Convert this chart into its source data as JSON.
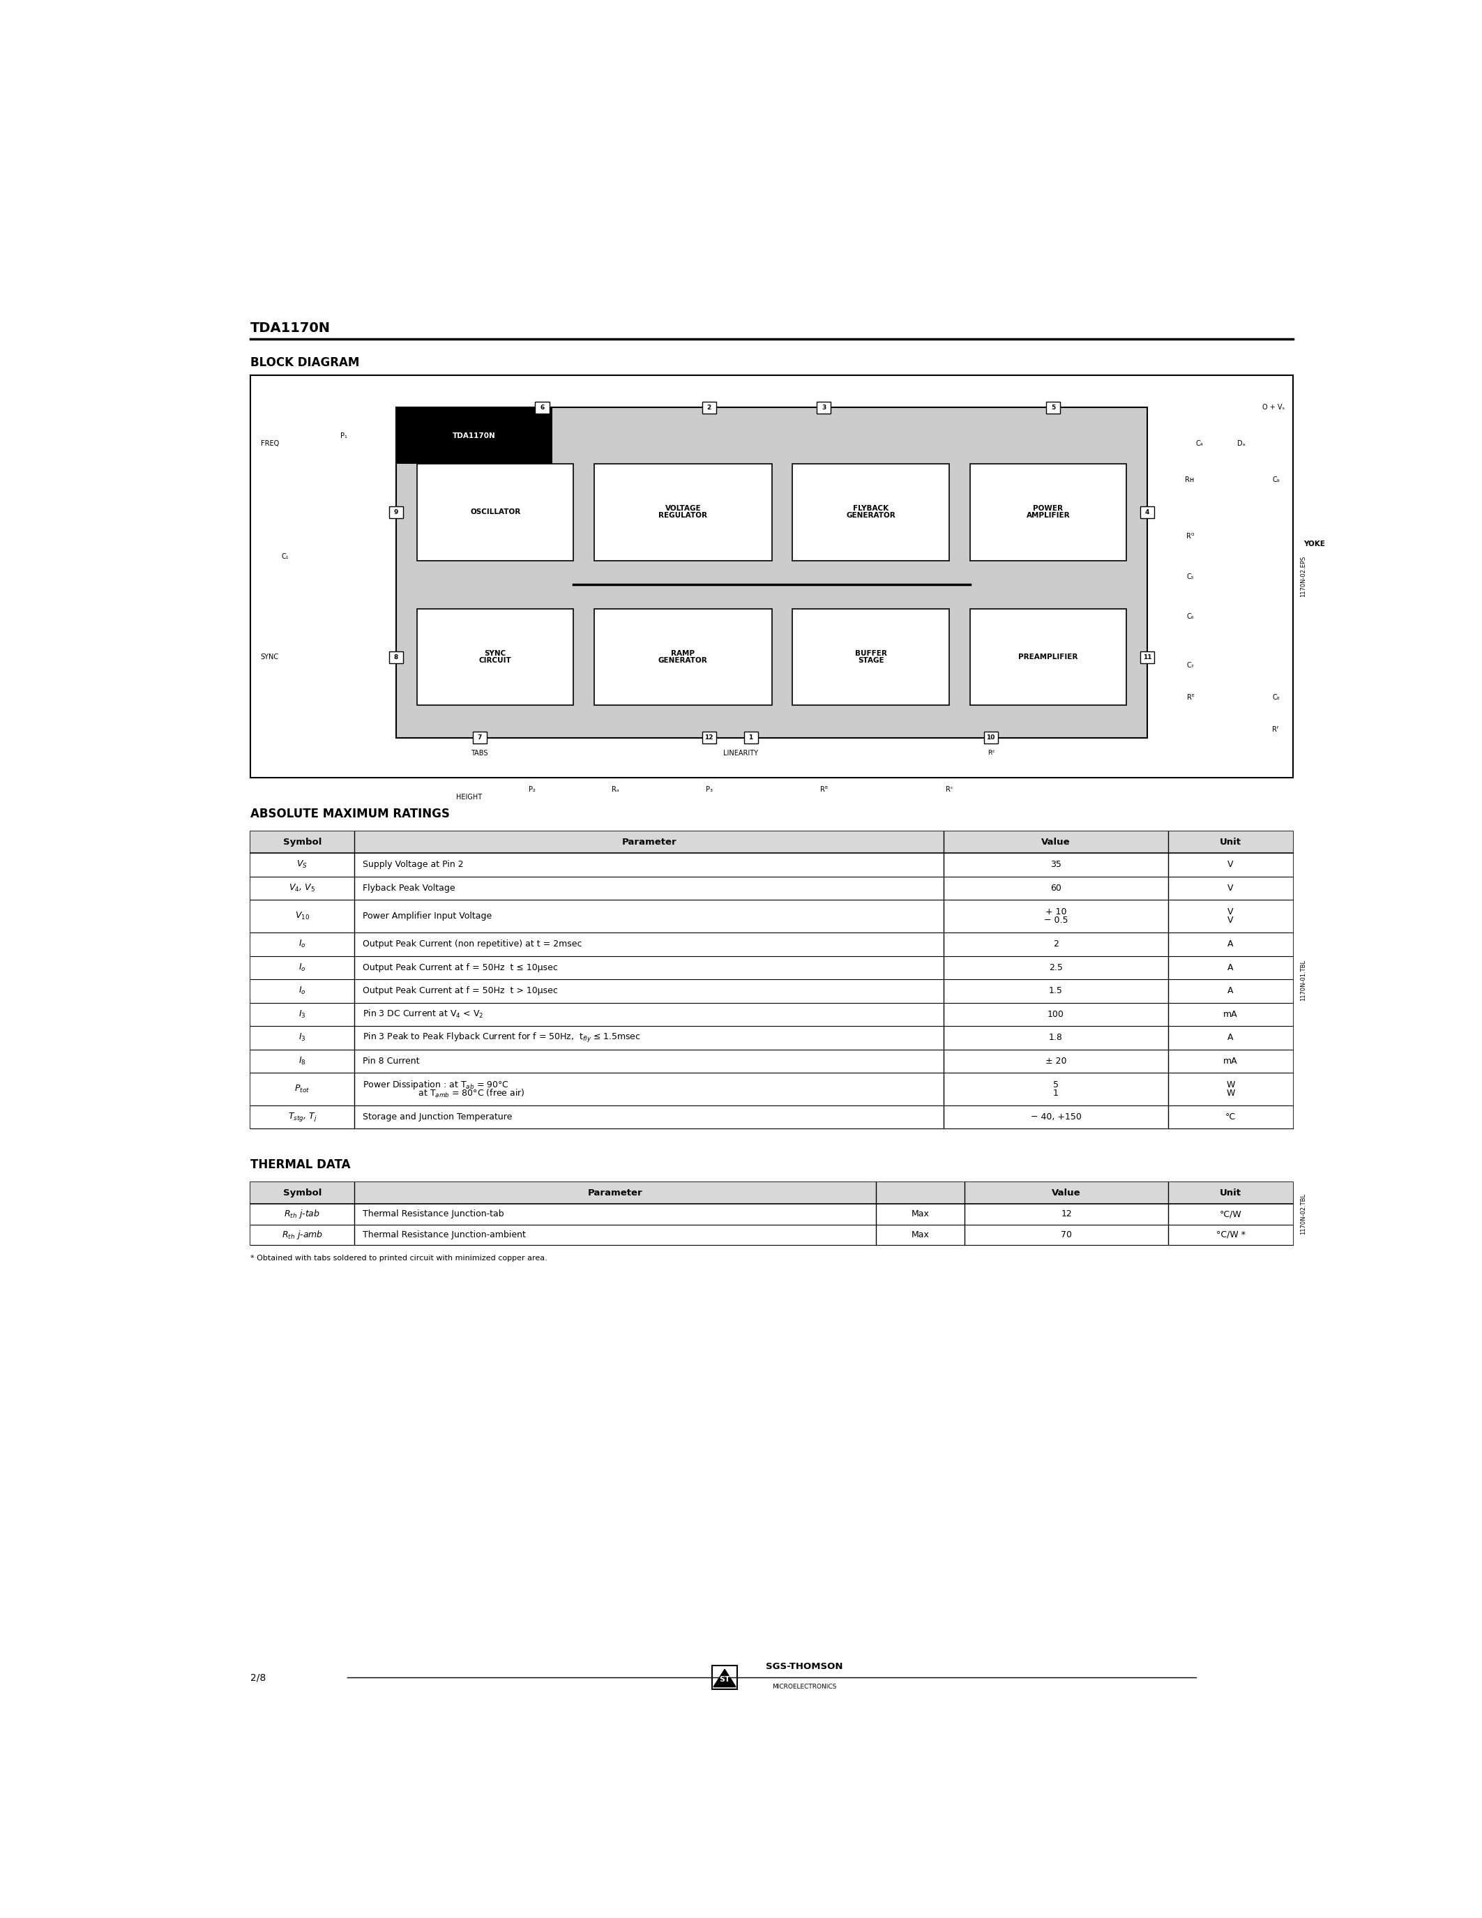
{
  "page_title": "TDA1170N",
  "section1_title": "BLOCK DIAGRAM",
  "section2_title": "ABSOLUTE MAXIMUM RATINGS",
  "section3_title": "THERMAL DATA",
  "footnote": "* Obtained with tabs soldered to printed circuit with minimized copper area.",
  "page_number": "2/8",
  "background_color": "#ffffff",
  "text_color": "#000000"
}
